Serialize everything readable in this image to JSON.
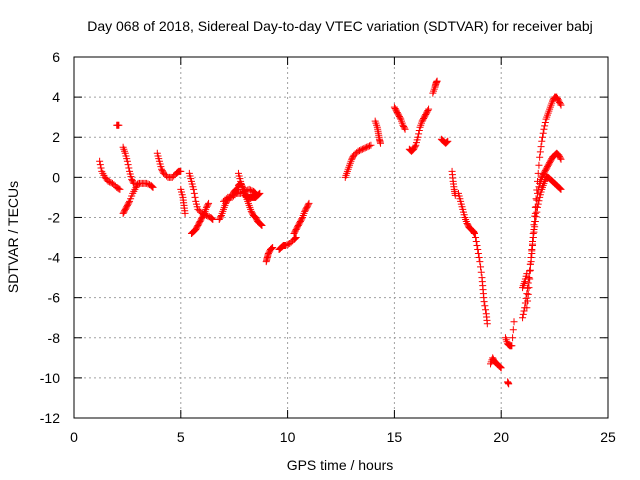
{
  "chart_data": {
    "type": "scatter",
    "title": "Day 068 of 2018, Sidereal Day-to-day VTEC variation (SDTVAR) for receiver babj",
    "xlabel": "GPS time / hours",
    "ylabel": "SDTVAR / TECUs",
    "xlim": [
      0,
      25
    ],
    "ylim": [
      -12,
      6
    ],
    "xticks": [
      0,
      5,
      10,
      15,
      20,
      25
    ],
    "yticks": [
      -12,
      -10,
      -8,
      -6,
      -4,
      -2,
      0,
      2,
      4,
      6
    ],
    "grid": true,
    "marker": "+",
    "marker_color": "#ff0000",
    "segments": [
      [
        [
          1.2,
          0.8
        ],
        [
          1.3,
          0.3
        ],
        [
          1.45,
          0.0
        ],
        [
          1.6,
          -0.2
        ],
        [
          1.8,
          -0.3
        ],
        [
          2.0,
          -0.5
        ],
        [
          2.15,
          -0.6
        ]
      ],
      [
        [
          2.0,
          2.6
        ],
        [
          2.1,
          2.6
        ]
      ],
      [
        [
          2.3,
          -1.8
        ],
        [
          2.4,
          -1.6
        ],
        [
          2.5,
          -1.4
        ],
        [
          2.6,
          -1.2
        ],
        [
          2.75,
          -0.8
        ],
        [
          2.9,
          -0.5
        ],
        [
          3.0,
          -0.3
        ],
        [
          3.2,
          -0.3
        ],
        [
          3.4,
          -0.3
        ],
        [
          3.6,
          -0.4
        ],
        [
          3.7,
          -0.5
        ]
      ],
      [
        [
          2.3,
          1.5
        ],
        [
          2.4,
          1.2
        ],
        [
          2.5,
          0.8
        ],
        [
          2.6,
          0.3
        ],
        [
          2.7,
          -0.1
        ],
        [
          2.8,
          -0.3
        ]
      ],
      [
        [
          3.9,
          1.2
        ],
        [
          4.0,
          0.8
        ],
        [
          4.1,
          0.4
        ],
        [
          4.2,
          0.2
        ],
        [
          4.4,
          0.0
        ],
        [
          4.6,
          0.0
        ],
        [
          4.8,
          0.2
        ],
        [
          4.9,
          0.3
        ],
        [
          5.0,
          0.3
        ]
      ],
      [
        [
          5.0,
          -0.6
        ],
        [
          5.1,
          -1.0
        ],
        [
          5.15,
          -1.4
        ],
        [
          5.2,
          -1.8
        ]
      ],
      [
        [
          5.4,
          0.2
        ],
        [
          5.5,
          -0.2
        ],
        [
          5.6,
          -0.6
        ],
        [
          5.7,
          -1.2
        ],
        [
          5.8,
          -1.6
        ],
        [
          6.0,
          -1.8
        ],
        [
          6.2,
          -1.9
        ],
        [
          6.4,
          -2.0
        ],
        [
          6.5,
          -2.1
        ]
      ],
      [
        [
          5.5,
          -2.8
        ],
        [
          5.6,
          -2.7
        ],
        [
          5.7,
          -2.6
        ],
        [
          5.8,
          -2.4
        ],
        [
          5.9,
          -2.2
        ],
        [
          6.0,
          -2.0
        ],
        [
          6.1,
          -1.8
        ],
        [
          6.2,
          -1.5
        ],
        [
          6.3,
          -1.3
        ]
      ],
      [
        [
          6.8,
          -2.1
        ],
        [
          6.9,
          -1.9
        ],
        [
          7.0,
          -1.6
        ],
        [
          7.1,
          -1.3
        ],
        [
          7.2,
          -1.1
        ],
        [
          7.4,
          -0.9
        ],
        [
          7.5,
          -0.7
        ],
        [
          7.6,
          -0.6
        ],
        [
          7.7,
          -0.6
        ]
      ],
      [
        [
          7.0,
          -1.2
        ],
        [
          7.2,
          -1.0
        ],
        [
          7.4,
          -1.0
        ],
        [
          7.6,
          -0.8
        ],
        [
          7.8,
          -0.8
        ],
        [
          8.0,
          -0.7
        ],
        [
          8.2,
          -0.6
        ],
        [
          8.4,
          -0.7
        ],
        [
          8.5,
          -0.8
        ]
      ],
      [
        [
          7.7,
          -0.4
        ],
        [
          7.8,
          -0.3
        ],
        [
          7.9,
          -0.5
        ],
        [
          8.0,
          -0.8
        ],
        [
          8.1,
          -1.1
        ],
        [
          8.2,
          -1.4
        ],
        [
          8.3,
          -1.7
        ],
        [
          8.4,
          -1.9
        ],
        [
          8.5,
          -2.0
        ],
        [
          8.6,
          -2.2
        ],
        [
          8.7,
          -2.3
        ],
        [
          8.8,
          -2.4
        ]
      ],
      [
        [
          7.7,
          0.2
        ],
        [
          7.8,
          -0.2
        ],
        [
          7.9,
          -0.6
        ],
        [
          8.0,
          -0.9
        ],
        [
          8.1,
          -1.0
        ],
        [
          8.2,
          -1.0
        ],
        [
          8.3,
          -1.0
        ],
        [
          8.4,
          -1.0
        ],
        [
          8.5,
          -1.0
        ],
        [
          8.6,
          -0.9
        ],
        [
          8.7,
          -0.8
        ]
      ],
      [
        [
          9.0,
          -4.2
        ],
        [
          9.05,
          -4.0
        ],
        [
          9.1,
          -3.8
        ],
        [
          9.2,
          -3.6
        ],
        [
          9.3,
          -3.5
        ]
      ],
      [
        [
          9.6,
          -3.6
        ],
        [
          9.7,
          -3.5
        ],
        [
          9.8,
          -3.4
        ],
        [
          9.9,
          -3.4
        ],
        [
          10.1,
          -3.3
        ],
        [
          10.3,
          -3.1
        ],
        [
          10.4,
          -3.0
        ]
      ],
      [
        [
          10.3,
          -2.8
        ],
        [
          10.4,
          -2.6
        ],
        [
          10.5,
          -2.4
        ],
        [
          10.6,
          -2.2
        ],
        [
          10.7,
          -2.0
        ],
        [
          10.8,
          -1.7
        ],
        [
          10.9,
          -1.5
        ],
        [
          11.0,
          -1.3
        ]
      ],
      [
        [
          12.7,
          0.0
        ],
        [
          12.8,
          0.3
        ],
        [
          12.9,
          0.6
        ],
        [
          13.0,
          0.9
        ],
        [
          13.1,
          1.1
        ],
        [
          13.3,
          1.3
        ],
        [
          13.5,
          1.4
        ],
        [
          13.7,
          1.5
        ],
        [
          13.9,
          1.6
        ]
      ],
      [
        [
          14.1,
          2.8
        ],
        [
          14.2,
          2.5
        ],
        [
          14.25,
          2.2
        ],
        [
          14.3,
          1.9
        ],
        [
          14.35,
          1.7
        ]
      ],
      [
        [
          15.0,
          3.5
        ],
        [
          15.1,
          3.3
        ],
        [
          15.2,
          3.1
        ],
        [
          15.3,
          2.9
        ],
        [
          15.4,
          2.6
        ],
        [
          15.5,
          2.4
        ]
      ],
      [
        [
          15.7,
          1.4
        ],
        [
          15.8,
          1.3
        ],
        [
          15.9,
          1.4
        ],
        [
          16.0,
          1.6
        ],
        [
          16.1,
          2.0
        ],
        [
          16.2,
          2.5
        ],
        [
          16.3,
          2.8
        ],
        [
          16.4,
          3.0
        ],
        [
          16.5,
          3.2
        ],
        [
          16.6,
          3.4
        ]
      ],
      [
        [
          16.8,
          4.2
        ],
        [
          16.9,
          4.5
        ],
        [
          16.95,
          4.7
        ],
        [
          17.0,
          4.8
        ]
      ],
      [
        [
          17.2,
          1.9
        ],
        [
          17.3,
          1.8
        ],
        [
          17.4,
          1.7
        ],
        [
          17.5,
          1.8
        ]
      ],
      [
        [
          17.7,
          0.3
        ],
        [
          17.75,
          -0.2
        ],
        [
          17.8,
          -0.6
        ],
        [
          17.85,
          -0.9
        ]
      ],
      [
        [
          18.0,
          -0.8
        ],
        [
          18.1,
          -1.2
        ],
        [
          18.2,
          -1.6
        ],
        [
          18.3,
          -2.0
        ],
        [
          18.4,
          -2.3
        ],
        [
          18.5,
          -2.5
        ],
        [
          18.6,
          -2.6
        ],
        [
          18.7,
          -2.7
        ],
        [
          18.75,
          -2.8
        ]
      ],
      [
        [
          18.8,
          -3.0
        ],
        [
          18.9,
          -3.6
        ],
        [
          19.0,
          -4.2
        ],
        [
          19.1,
          -5.0
        ],
        [
          19.15,
          -5.6
        ],
        [
          19.2,
          -6.2
        ],
        [
          19.3,
          -6.8
        ],
        [
          19.35,
          -7.3
        ]
      ],
      [
        [
          19.5,
          -9.3
        ],
        [
          19.6,
          -9.0
        ],
        [
          19.7,
          -9.2
        ],
        [
          19.8,
          -9.3
        ],
        [
          19.9,
          -9.4
        ],
        [
          20.0,
          -9.5
        ]
      ],
      [
        [
          20.2,
          -8.0
        ],
        [
          20.3,
          -8.3
        ],
        [
          20.4,
          -8.4
        ],
        [
          20.5,
          -8.4
        ],
        [
          20.6,
          -7.2
        ]
      ],
      [
        [
          20.3,
          -10.2
        ],
        [
          20.35,
          -10.3
        ]
      ],
      [
        [
          21.0,
          -5.5
        ],
        [
          21.1,
          -5.2
        ],
        [
          21.2,
          -4.8
        ]
      ],
      [
        [
          21.0,
          -7.0
        ],
        [
          21.1,
          -6.5
        ],
        [
          21.2,
          -5.8
        ],
        [
          21.3,
          -5.0
        ],
        [
          21.4,
          -4.0
        ],
        [
          21.5,
          -3.0
        ],
        [
          21.6,
          -2.2
        ],
        [
          21.7,
          -1.5
        ],
        [
          21.8,
          -1.0
        ],
        [
          21.9,
          -0.6
        ],
        [
          22.0,
          -0.3
        ],
        [
          22.1,
          0.0
        ],
        [
          22.2,
          0.0
        ],
        [
          22.3,
          -0.1
        ],
        [
          22.4,
          -0.2
        ],
        [
          22.5,
          -0.3
        ],
        [
          22.6,
          -0.4
        ],
        [
          22.7,
          -0.5
        ],
        [
          22.8,
          -0.6
        ]
      ],
      [
        [
          21.2,
          -6.5
        ],
        [
          21.3,
          -5.5
        ],
        [
          21.4,
          -4.2
        ],
        [
          21.5,
          -3.0
        ],
        [
          21.6,
          -1.8
        ],
        [
          21.7,
          -0.8
        ],
        [
          21.8,
          -0.3
        ],
        [
          21.9,
          0.0
        ],
        [
          22.0,
          0.2
        ],
        [
          22.1,
          0.4
        ],
        [
          22.2,
          0.6
        ],
        [
          22.3,
          0.8
        ],
        [
          22.4,
          1.0
        ],
        [
          22.5,
          1.1
        ],
        [
          22.6,
          1.2
        ],
        [
          22.7,
          1.1
        ],
        [
          22.8,
          0.9
        ]
      ],
      [
        [
          21.3,
          -5.0
        ],
        [
          21.4,
          -4.0
        ],
        [
          21.5,
          -2.8
        ],
        [
          21.6,
          -1.5
        ],
        [
          21.7,
          -0.2
        ],
        [
          21.8,
          1.0
        ],
        [
          21.9,
          1.8
        ],
        [
          22.0,
          2.4
        ],
        [
          22.1,
          2.9
        ],
        [
          22.2,
          3.2
        ],
        [
          22.3,
          3.5
        ],
        [
          22.4,
          3.8
        ],
        [
          22.5,
          4.0
        ],
        [
          22.6,
          4.0
        ],
        [
          22.7,
          3.8
        ],
        [
          22.8,
          3.6
        ]
      ]
    ]
  }
}
